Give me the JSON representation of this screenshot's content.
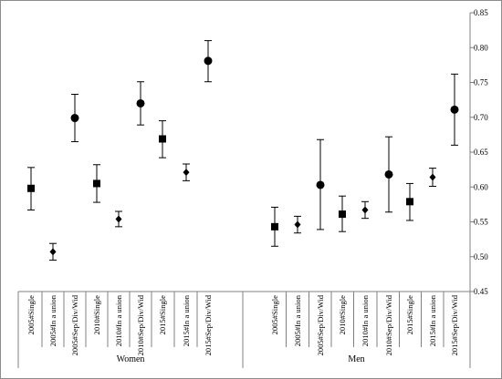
{
  "chart_data": {
    "type": "scatter",
    "title": "",
    "xlabel": "",
    "ylabel": "",
    "ylim": [
      0.45,
      0.85
    ],
    "y_ticks": [
      "0.45",
      "0.50",
      "0.55",
      "0.60",
      "0.65",
      "0.70",
      "0.75",
      "0.80",
      "0.85"
    ],
    "y_axis_position": "right",
    "grid": false,
    "groups": [
      {
        "label": "Women",
        "points": [
          {
            "category": "2005#Single",
            "marker": "square",
            "value": 0.598,
            "low": 0.567,
            "high": 0.628
          },
          {
            "category": "2005#In a union",
            "marker": "diamond",
            "value": 0.507,
            "low": 0.495,
            "high": 0.519
          },
          {
            "category": "2005#Sep/Div/Wid",
            "marker": "circle",
            "value": 0.699,
            "low": 0.665,
            "high": 0.733
          },
          {
            "category": "2010#Single",
            "marker": "square",
            "value": 0.605,
            "low": 0.578,
            "high": 0.632
          },
          {
            "category": "2010#In a union",
            "marker": "diamond",
            "value": 0.554,
            "low": 0.543,
            "high": 0.565
          },
          {
            "category": "2010#Sep/Div/Wid",
            "marker": "circle",
            "value": 0.72,
            "low": 0.689,
            "high": 0.751
          },
          {
            "category": "2015#Single",
            "marker": "square",
            "value": 0.669,
            "low": 0.642,
            "high": 0.695
          },
          {
            "category": "2015#In a union",
            "marker": "diamond",
            "value": 0.621,
            "low": 0.609,
            "high": 0.633
          },
          {
            "category": "2015#Sep/Div/Wid",
            "marker": "circle",
            "value": 0.781,
            "low": 0.751,
            "high": 0.81
          }
        ]
      },
      {
        "label": "Men",
        "points": [
          {
            "category": "2005#Single",
            "marker": "square",
            "value": 0.543,
            "low": 0.515,
            "high": 0.571
          },
          {
            "category": "2005#In a union",
            "marker": "diamond",
            "value": 0.546,
            "low": 0.534,
            "high": 0.558
          },
          {
            "category": "2005#Sep/Div/Wid",
            "marker": "circle",
            "value": 0.603,
            "low": 0.539,
            "high": 0.668
          },
          {
            "category": "2010#Single",
            "marker": "square",
            "value": 0.561,
            "low": 0.536,
            "high": 0.587
          },
          {
            "category": "2010#In a union",
            "marker": "diamond",
            "value": 0.567,
            "low": 0.555,
            "high": 0.579
          },
          {
            "category": "2010#Sep/Div/Wid",
            "marker": "circle",
            "value": 0.618,
            "low": 0.564,
            "high": 0.672
          },
          {
            "category": "2015#Single",
            "marker": "square",
            "value": 0.579,
            "low": 0.552,
            "high": 0.605
          },
          {
            "category": "2015#In a union",
            "marker": "diamond",
            "value": 0.614,
            "low": 0.601,
            "high": 0.627
          },
          {
            "category": "2015#Sep/Div/Wid",
            "marker": "circle",
            "value": 0.711,
            "low": 0.66,
            "high": 0.762
          }
        ]
      }
    ],
    "colors": {
      "marker": "#000000",
      "axis": "#808080",
      "frame": "#8c8c8c"
    }
  }
}
